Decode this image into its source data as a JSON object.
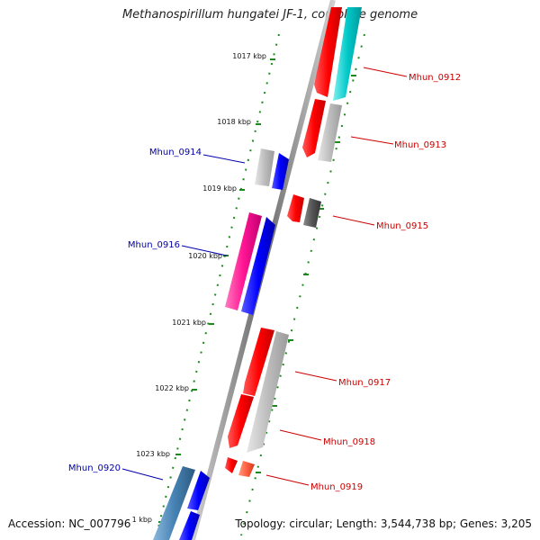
{
  "title": "Methanospirillum hungatei JF-1, complete genome",
  "footer": {
    "accession": "Accession: NC_007796",
    "topology": "Topology: circular; Length: 3,544,738 bp; Genes: 3,205"
  },
  "ruler_labels": [
    "1017 kbp",
    "1018 kbp",
    "1019 kbp",
    "1020 kbp",
    "1021 kbp",
    "1022 kbp",
    "1023 kbp",
    "1 kbp"
  ],
  "genes_forward": [
    "Mhun_0912",
    "Mhun_0913",
    "Mhun_0915",
    "Mhun_0917",
    "Mhun_0918",
    "Mhun_0919"
  ],
  "genes_reverse": [
    "Mhun_0914",
    "Mhun_0916",
    "Mhun_0920"
  ],
  "colors": {
    "forward_label": "#cc0000",
    "reverse_label": "#0000aa",
    "tick": "#1a8a1a",
    "backbone": "#777777",
    "red": "#ff0000",
    "blue": "#0000ff",
    "gray": "#b4b4b4",
    "dark_gray": "#555555",
    "cyan": "#00c8c8",
    "pink": "#ff1493",
    "steel": "#4682b4",
    "salmon": "#ff6040"
  }
}
